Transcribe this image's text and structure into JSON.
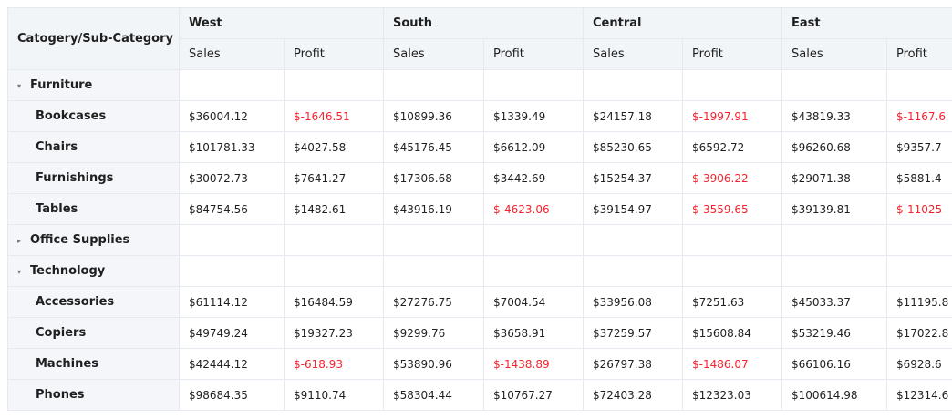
{
  "table": {
    "corner": "Catogery/Sub-Category",
    "regions": [
      {
        "name": "West",
        "measures": [
          "Sales",
          "Profit"
        ]
      },
      {
        "name": "South",
        "measures": [
          "Sales",
          "Profit"
        ]
      },
      {
        "name": "Central",
        "measures": [
          "Sales",
          "Profit"
        ]
      },
      {
        "name": "East",
        "measures": [
          "Sales",
          "Profit"
        ]
      }
    ],
    "negative_color": "#f5222d",
    "groups": [
      {
        "label": "Furniture",
        "expanded": true,
        "children": [
          {
            "label": "Bookcases",
            "cells": [
              "$36004.12",
              "$-1646.51",
              "$10899.36",
              "$1339.49",
              "$24157.18",
              "$-1997.91",
              "$43819.33",
              "$-1167.6"
            ]
          },
          {
            "label": "Chairs",
            "cells": [
              "$101781.33",
              "$4027.58",
              "$45176.45",
              "$6612.09",
              "$85230.65",
              "$6592.72",
              "$96260.68",
              "$9357.7"
            ]
          },
          {
            "label": "Furnishings",
            "cells": [
              "$30072.73",
              "$7641.27",
              "$17306.68",
              "$3442.69",
              "$15254.37",
              "$-3906.22",
              "$29071.38",
              "$5881.4"
            ]
          },
          {
            "label": "Tables",
            "cells": [
              "$84754.56",
              "$1482.61",
              "$43916.19",
              "$-4623.06",
              "$39154.97",
              "$-3559.65",
              "$39139.81",
              "$-11025"
            ]
          }
        ]
      },
      {
        "label": "Office Supplies",
        "expanded": false
      },
      {
        "label": "Technology",
        "expanded": true,
        "children": [
          {
            "label": "Accessories",
            "cells": [
              "$61114.12",
              "$16484.59",
              "$27276.75",
              "$7004.54",
              "$33956.08",
              "$7251.63",
              "$45033.37",
              "$11195.8"
            ]
          },
          {
            "label": "Copiers",
            "cells": [
              "$49749.24",
              "$19327.23",
              "$9299.76",
              "$3658.91",
              "$37259.57",
              "$15608.84",
              "$53219.46",
              "$17022.8"
            ]
          },
          {
            "label": "Machines",
            "cells": [
              "$42444.12",
              "$-618.93",
              "$53890.96",
              "$-1438.89",
              "$26797.38",
              "$-1486.07",
              "$66106.16",
              "$6928.6"
            ]
          },
          {
            "label": "Phones",
            "cells": [
              "$98684.35",
              "$9110.74",
              "$58304.44",
              "$10767.27",
              "$72403.28",
              "$12323.03",
              "$100614.98",
              "$12314.6"
            ]
          }
        ]
      }
    ]
  }
}
